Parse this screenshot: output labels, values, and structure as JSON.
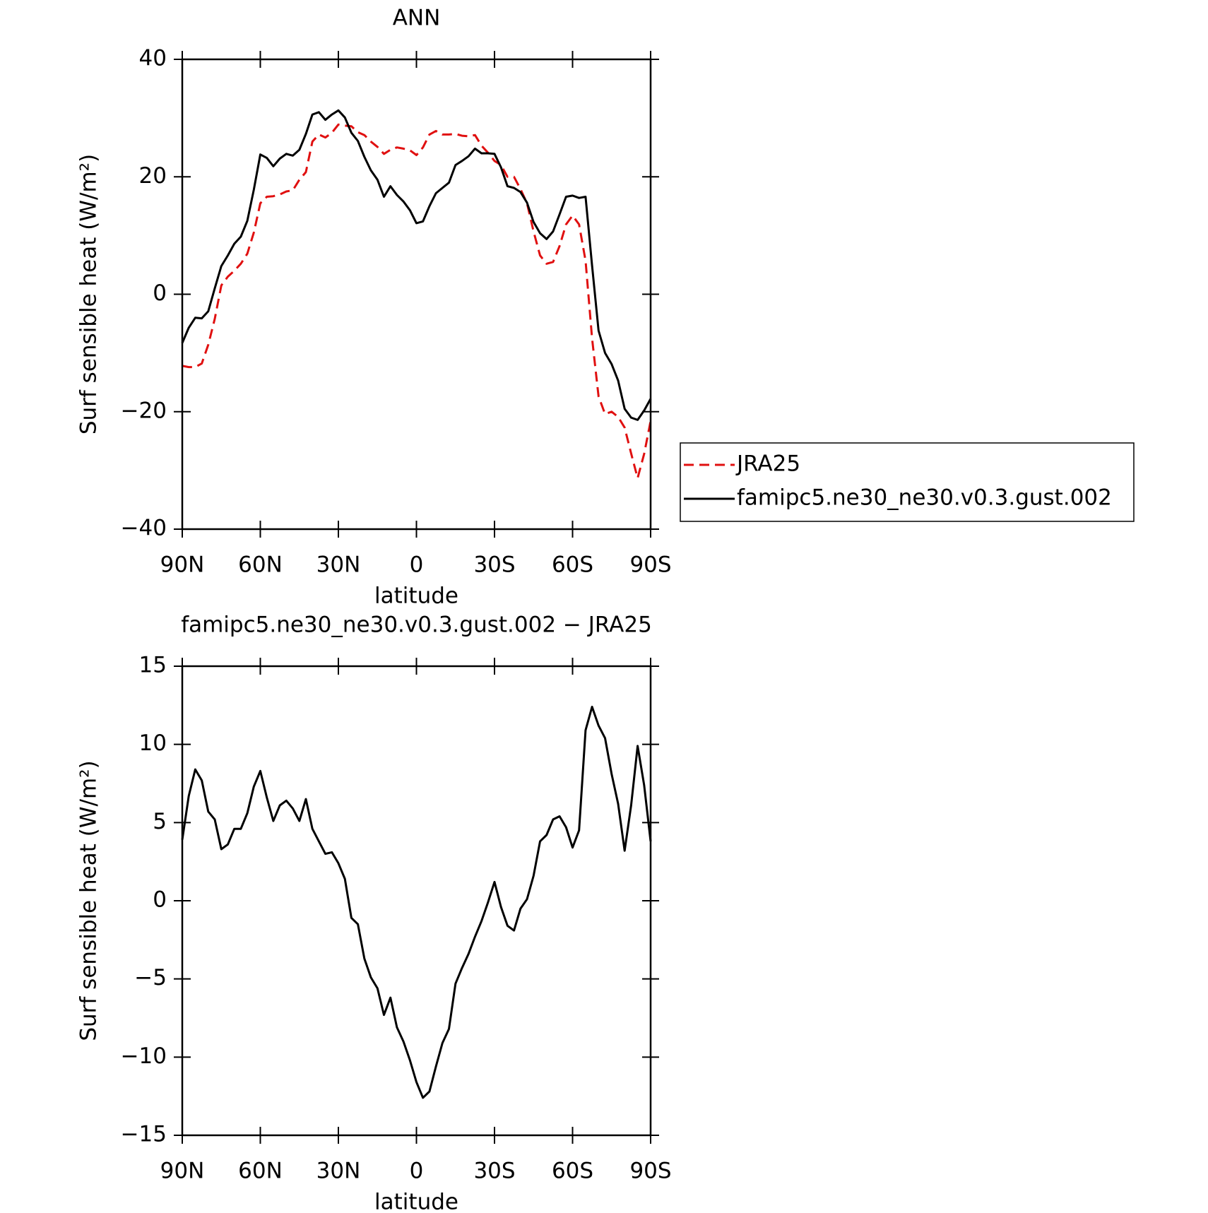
{
  "chart_data": [
    {
      "type": "line",
      "title": "ANN",
      "x_label": "latitude",
      "y_label": "Surf sensible heat (W/m²)",
      "x": [
        90,
        87.5,
        85,
        82.5,
        80,
        77.5,
        75,
        72.5,
        70,
        67.5,
        65,
        62.5,
        60,
        57.5,
        55,
        52.5,
        50,
        47.5,
        45,
        42.5,
        40,
        37.5,
        35,
        32.5,
        30,
        27.5,
        25,
        22.5,
        20,
        17.5,
        15,
        12.5,
        10,
        7.5,
        5,
        2.5,
        0,
        -2.5,
        -5,
        -7.5,
        -10,
        -12.5,
        -15,
        -17.5,
        -20,
        -22.5,
        -25,
        -27.5,
        -30,
        -32.5,
        -35,
        -37.5,
        -40,
        -42.5,
        -45,
        -47.5,
        -50,
        -52.5,
        -55,
        -57.5,
        -60,
        -62.5,
        -65,
        -67.5,
        -70,
        -72.5,
        -75,
        -77.5,
        -80,
        -82.5,
        -85,
        -87.5,
        -90
      ],
      "series": [
        {
          "name": "JRA25",
          "color": "#e01010",
          "dash": true,
          "values": [
            -12.2,
            -12.4,
            -12.4,
            -11.8,
            -8.6,
            -4.2,
            1.5,
            3.0,
            4.0,
            5.2,
            6.9,
            10.5,
            15.5,
            16.6,
            16.7,
            17.0,
            17.5,
            17.7,
            19.5,
            20.8,
            26.0,
            27.2,
            26.7,
            27.5,
            28.9,
            28.7,
            28.6,
            27.6,
            27.1,
            26.0,
            25.1,
            23.9,
            24.6,
            25.0,
            24.8,
            24.5,
            23.7,
            25.0,
            27.2,
            27.8,
            27.2,
            27.2,
            27.3,
            27.0,
            26.9,
            27.1,
            25.3,
            24.1,
            22.7,
            22.0,
            20.0,
            20.0,
            17.9,
            15.5,
            10.7,
            6.6,
            5.2,
            5.5,
            8.2,
            11.9,
            13.4,
            11.9,
            5.7,
            -7.5,
            -17.4,
            -20.4,
            -20.0,
            -20.9,
            -22.7,
            -27.1,
            -31.3,
            -27.2,
            -21.6
          ]
        },
        {
          "name": "famipc5.ne30_ne30.v0.3.gust.002",
          "color": "#000000",
          "dash": false,
          "values": [
            -8.3,
            -5.7,
            -4.0,
            -4.1,
            -2.9,
            1.0,
            4.8,
            6.6,
            8.6,
            9.8,
            12.5,
            17.8,
            23.8,
            23.2,
            21.8,
            23.1,
            23.9,
            23.6,
            24.6,
            27.3,
            30.6,
            31.0,
            29.7,
            30.6,
            31.3,
            30.1,
            27.5,
            26.1,
            23.4,
            21.1,
            19.5,
            16.6,
            18.4,
            16.9,
            15.8,
            14.3,
            12.1,
            12.4,
            15.0,
            17.2,
            18.1,
            19.0,
            22.0,
            22.7,
            23.5,
            24.8,
            24.0,
            24.0,
            23.9,
            21.6,
            18.4,
            18.1,
            17.4,
            15.6,
            12.3,
            10.4,
            9.4,
            10.7,
            13.6,
            16.6,
            16.8,
            16.4,
            16.6,
            4.9,
            -6.2,
            -10.0,
            -11.9,
            -14.7,
            -19.5,
            -21.0,
            -21.4,
            -19.8,
            -17.8
          ]
        }
      ],
      "xlim": [
        90,
        -90
      ],
      "xticks": [
        {
          "value": 90,
          "label": "90N"
        },
        {
          "value": 60,
          "label": "60N"
        },
        {
          "value": 30,
          "label": "30N"
        },
        0,
        {
          "value": -30,
          "label": "30S"
        },
        {
          "value": -60,
          "label": "60S"
        },
        {
          "value": -90,
          "label": "90S"
        }
      ],
      "ylim": [
        -40,
        40
      ],
      "yticks": [
        {
          "value": -40,
          "label": "−40"
        },
        {
          "value": -20,
          "label": "−20"
        },
        0,
        20,
        40
      ],
      "legend": "outside right"
    },
    {
      "type": "line",
      "title": "famipc5.ne30_ne30.v0.3.gust.002 − JRA25",
      "x_label": "latitude",
      "y_label": "Surf sensible heat (W/m²)",
      "x": [
        90,
        87.5,
        85,
        82.5,
        80,
        77.5,
        75,
        72.5,
        70,
        67.5,
        65,
        62.5,
        60,
        57.5,
        55,
        52.5,
        50,
        47.5,
        45,
        42.5,
        40,
        37.5,
        35,
        32.5,
        30,
        27.5,
        25,
        22.5,
        20,
        17.5,
        15,
        12.5,
        10,
        7.5,
        5,
        2.5,
        0,
        -2.5,
        -5,
        -7.5,
        -10,
        -12.5,
        -15,
        -17.5,
        -20,
        -22.5,
        -25,
        -27.5,
        -30,
        -32.5,
        -35,
        -37.5,
        -40,
        -42.5,
        -45,
        -47.5,
        -50,
        -52.5,
        -55,
        -57.5,
        -60,
        -62.5,
        -65,
        -67.5,
        -70,
        -72.5,
        -75,
        -77.5,
        -80,
        -82.5,
        -85,
        -87.5,
        -90
      ],
      "color": "#000000",
      "values": [
        3.9,
        6.7,
        8.4,
        7.7,
        5.7,
        5.2,
        3.3,
        3.6,
        4.6,
        4.6,
        5.6,
        7.3,
        8.3,
        6.6,
        5.1,
        6.1,
        6.4,
        5.9,
        5.1,
        6.5,
        4.6,
        3.8,
        3.0,
        3.1,
        2.4,
        1.4,
        -1.1,
        -1.5,
        -3.7,
        -4.9,
        -5.6,
        -7.3,
        -6.2,
        -8.1,
        -9.0,
        -10.2,
        -11.6,
        -12.6,
        -12.2,
        -10.6,
        -9.1,
        -8.2,
        -5.3,
        -4.3,
        -3.4,
        -2.3,
        -1.3,
        -0.1,
        1.2,
        -0.4,
        -1.6,
        -1.9,
        -0.5,
        0.1,
        1.6,
        3.8,
        4.2,
        5.2,
        5.4,
        4.7,
        3.4,
        4.5,
        10.9,
        12.4,
        11.2,
        10.4,
        8.1,
        6.2,
        3.2,
        6.1,
        9.9,
        7.4,
        3.8
      ],
      "xlim": [
        90,
        -90
      ],
      "xticks": [
        {
          "value": 90,
          "label": "90N"
        },
        {
          "value": 60,
          "label": "60N"
        },
        {
          "value": 30,
          "label": "30N"
        },
        0,
        {
          "value": -30,
          "label": "30S"
        },
        {
          "value": -60,
          "label": "60S"
        },
        {
          "value": -90,
          "label": "90S"
        }
      ],
      "ylim": [
        -15,
        15
      ],
      "yticks": [
        {
          "value": -15,
          "label": "−15"
        },
        {
          "value": -10,
          "label": "−10"
        },
        {
          "value": -5,
          "label": "−5"
        },
        0,
        5,
        10,
        15
      ]
    }
  ]
}
